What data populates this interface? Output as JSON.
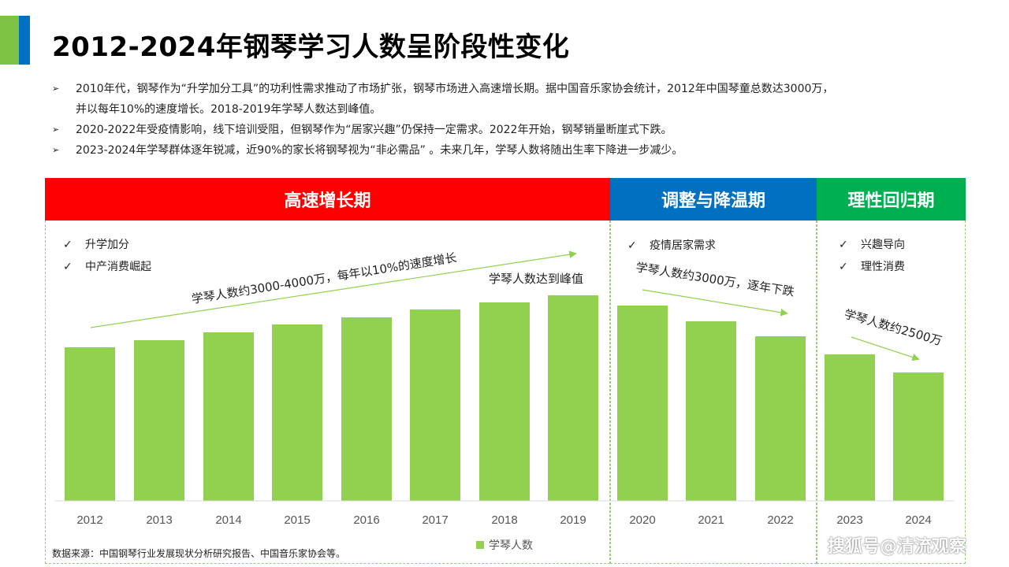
{
  "header": {
    "title": "2012-2024年钢琴学习人数呈阶段性变化"
  },
  "bullets": [
    {
      "marker": "➢",
      "lines": [
        "2010年代，钢琴作为“升学加分工具”的功利性需求推动了市场扩张，钢琴市场进入高速增长期。据中国音乐家协会统计，2012年中国琴童总数达3000万，",
        "并以每年10%的速度增长。2018-2019年学琴人数达到峰值。"
      ]
    },
    {
      "marker": "➢",
      "lines": [
        "2020-2022年受疫情影响，线下培训受阻，但钢琴作为“居家兴趣”仍保持一定需求。2022年开始，钢琴销量断崖式下跌。"
      ]
    },
    {
      "marker": "➢",
      "lines": [
        "2023-2024年学琴群体逐年锐减，近90%的家长将钢琴视为“非必需品” 。未来几年，学琴人数将随出生率下降进一步减少。"
      ]
    }
  ],
  "phases": [
    {
      "label": "高速增长期",
      "color": "#ff0000",
      "checks": [
        "升学加分",
        "中产消费崛起"
      ]
    },
    {
      "label": "调整与降温期",
      "color": "#0070c0",
      "checks": [
        "疫情居家需求"
      ]
    },
    {
      "label": "理性回归期",
      "color": "#00b050",
      "checks": [
        "兴趣导向",
        "理性消费"
      ]
    }
  ],
  "check_mark": "✓",
  "chart_data": {
    "type": "bar",
    "categories": [
      "2012",
      "2013",
      "2014",
      "2015",
      "2016",
      "2017",
      "2018",
      "2019",
      "2020",
      "2021",
      "2022",
      "2023",
      "2024"
    ],
    "series": [
      {
        "name": "学琴人数",
        "values": [
          195,
          204,
          214,
          224,
          233,
          243,
          252,
          261,
          248,
          228,
          209,
          186,
          163
        ],
        "color": "#92d050"
      }
    ],
    "ylim": [
      0,
      300
    ],
    "grid": false,
    "legend_position": "bottom",
    "annotations": [
      {
        "text": "学琴人数约3000-4000万，每年以10%的速度增长"
      },
      {
        "text": "学琴人数达到峰值"
      },
      {
        "text": "学琴人数约3000万，逐年下跌"
      },
      {
        "text": "学琴人数约2500万"
      }
    ]
  },
  "source": "数据来源：中国钢琴行业发展现状分析研究报告、中国音乐家协会等。",
  "watermark": "搜狐号@清流观察",
  "colors": {
    "accent_green": "#7dc242",
    "accent_blue": "#0070c0",
    "bar": "#92d050",
    "arrow": "#92d050"
  }
}
